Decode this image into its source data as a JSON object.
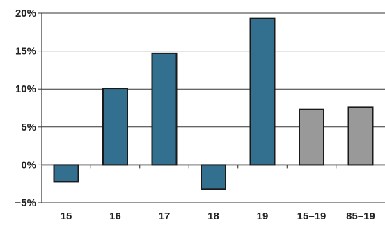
{
  "chart_data": {
    "type": "bar",
    "title": "",
    "xlabel": "",
    "ylabel": "",
    "categories": [
      "15",
      "16",
      "17",
      "18",
      "19",
      "15–19",
      "85–19"
    ],
    "values": [
      -2.2,
      10.1,
      14.7,
      -3.2,
      19.3,
      7.3,
      7.6
    ],
    "bar_colors": [
      "#336f8f",
      "#336f8f",
      "#336f8f",
      "#336f8f",
      "#336f8f",
      "#999999",
      "#999999"
    ],
    "ylim": [
      -5,
      20
    ],
    "yticks": [
      -5,
      0,
      5,
      10,
      15,
      20
    ],
    "ytick_labels": [
      "−5%",
      "0%",
      "5%",
      "10%",
      "15%",
      "20%"
    ],
    "grid": true,
    "legend": "none"
  }
}
